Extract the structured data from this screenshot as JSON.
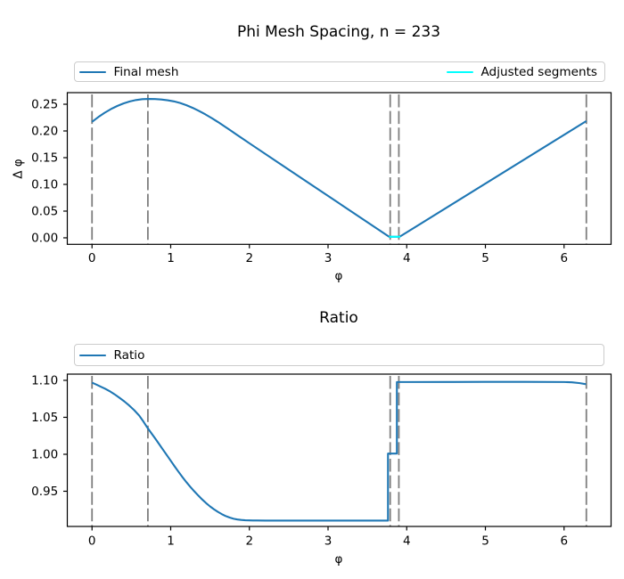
{
  "colors": {
    "line_blue": "#1f77b4",
    "line_cyan": "#00ffff",
    "vline_gray": "#7f7f7f",
    "spine_black": "#000000",
    "legend_border": "#cccccc",
    "background": "#ffffff"
  },
  "chart_data": [
    {
      "type": "line",
      "title": "Phi Mesh Spacing, n = 233",
      "xlabel": "φ",
      "ylabel": "Δ φ",
      "xlim": [
        -0.3142,
        6.5974
      ],
      "ylim": [
        -0.0122,
        0.2717
      ],
      "xticks": [
        0,
        1,
        2,
        3,
        4,
        5,
        6
      ],
      "xtick_labels": [
        "0",
        "1",
        "2",
        "3",
        "4",
        "5",
        "6"
      ],
      "yticks": [
        0.0,
        0.05,
        0.1,
        0.15,
        0.2,
        0.25
      ],
      "ytick_labels": [
        "0.00",
        "0.05",
        "0.10",
        "0.15",
        "0.20",
        "0.25"
      ],
      "grid": false,
      "vlines": [
        0,
        0.71,
        3.79,
        3.9,
        6.2832
      ],
      "legend": {
        "position": "above-expand",
        "entries": [
          {
            "label": "Final mesh",
            "color": "#1f77b4"
          },
          {
            "label": "Adjusted segments",
            "color": "#00ffff"
          }
        ]
      },
      "series": [
        {
          "name": "Final mesh",
          "color": "#1f77b4",
          "x": [
            0.0,
            0.08,
            0.16,
            0.24,
            0.32,
            0.4,
            0.48,
            0.56,
            0.64,
            0.72,
            0.8,
            0.88,
            0.96,
            1.04,
            1.12,
            1.2,
            1.28,
            1.36,
            1.44,
            1.52,
            1.6,
            1.68,
            1.76,
            1.84,
            1.92,
            2.0,
            2.4,
            2.8,
            3.2,
            3.776,
            3.91,
            6.2832
          ],
          "y": [
            0.217,
            0.226,
            0.234,
            0.2409,
            0.2467,
            0.2515,
            0.2552,
            0.2579,
            0.2595,
            0.26,
            0.2597,
            0.2589,
            0.2574,
            0.2554,
            0.2523,
            0.2482,
            0.2432,
            0.2375,
            0.2311,
            0.2242,
            0.2168,
            0.209,
            0.2011,
            0.193,
            0.185,
            0.177,
            0.1376,
            0.0982,
            0.0588,
            0.002,
            0.002,
            0.2185
          ]
        },
        {
          "name": "Adjusted segments",
          "color": "#00ffff",
          "x": [
            3.776,
            3.92
          ],
          "y": [
            0.002,
            0.002
          ]
        }
      ]
    },
    {
      "type": "line",
      "title": "Ratio",
      "xlabel": "φ",
      "ylabel": "",
      "xlim": [
        -0.3142,
        6.5974
      ],
      "ylim": [
        0.9024,
        1.1084
      ],
      "xticks": [
        0,
        1,
        2,
        3,
        4,
        5,
        6
      ],
      "xtick_labels": [
        "0",
        "1",
        "2",
        "3",
        "4",
        "5",
        "6"
      ],
      "yticks": [
        0.95,
        1.0,
        1.05,
        1.1
      ],
      "ytick_labels": [
        "0.95",
        "1.00",
        "1.05",
        "1.10"
      ],
      "grid": false,
      "vlines": [
        0,
        0.71,
        3.79,
        3.9,
        6.2832
      ],
      "legend": {
        "position": "above-expand",
        "entries": [
          {
            "label": "Ratio",
            "color": "#1f77b4"
          }
        ]
      },
      "series": [
        {
          "name": "Ratio",
          "color": "#1f77b4",
          "x": [
            0.0,
            0.048,
            0.11,
            0.1649,
            0.222,
            0.2854,
            0.35,
            0.4104,
            0.471,
            0.5366,
            0.6,
            0.6535,
            0.703,
            0.7515,
            0.8,
            0.8515,
            0.903,
            0.9516,
            1.0,
            1.0504,
            1.101,
            1.1505,
            1.2,
            1.2505,
            1.301,
            1.3506,
            1.4,
            1.4499,
            1.5,
            1.5501,
            1.6,
            1.6489,
            1.698,
            1.7491,
            1.8,
            1.8484,
            1.897,
            1.9483,
            2.0,
            2.0439,
            2.1,
            2.2062,
            2.3,
            3.0,
            3.5,
            3.762,
            3.762,
            3.875,
            3.875,
            4.0,
            4.5,
            5.0,
            5.5,
            6.0,
            6.1,
            6.2,
            6.279
          ],
          "y": [
            1.0969,
            1.0946,
            1.0915,
            1.0887,
            1.0855,
            1.0812,
            1.0763,
            1.0715,
            1.0661,
            1.0596,
            1.0523,
            1.0442,
            1.0361,
            1.0289,
            1.0218,
            1.014,
            1.0061,
            0.9987,
            0.9913,
            0.9836,
            0.9761,
            0.969,
            0.9622,
            0.9558,
            0.9498,
            0.9442,
            0.9389,
            0.934,
            0.9295,
            0.9256,
            0.9221,
            0.9191,
            0.9165,
            0.9144,
            0.9128,
            0.9118,
            0.9112,
            0.9108,
            0.9106,
            0.9105,
            0.9104,
            0.9103,
            0.9103,
            0.9103,
            0.9103,
            0.9103,
            1.001,
            1.001,
            1.0977,
            1.0977,
            1.0978,
            1.0979,
            1.0979,
            1.0977,
            1.0973,
            1.0962,
            1.0948
          ]
        }
      ]
    }
  ]
}
